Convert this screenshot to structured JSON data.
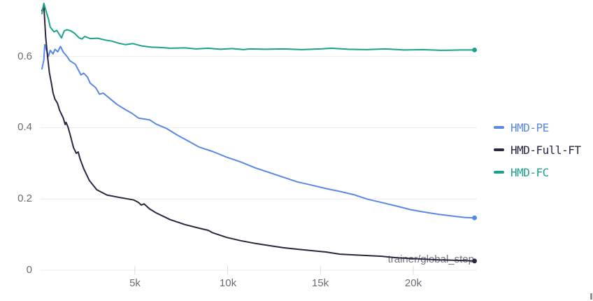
{
  "chart_data": {
    "type": "line",
    "title": "",
    "xlabel": "trainer/global_step",
    "ylabel": "",
    "xlim": [
      0,
      23300
    ],
    "ylim": [
      0,
      0.76
    ],
    "grid": "horizontal-only",
    "legend_position": "right",
    "background_color": "#ffffff",
    "gridline_color": "#ebebf0",
    "tick_mark_color": "#dcdce2",
    "tick_label_color": "#6b6b76",
    "axis_label_color": "#73737d",
    "xticks": [
      {
        "value": 5000,
        "label": "5k"
      },
      {
        "value": 10000,
        "label": "10k"
      },
      {
        "value": 15000,
        "label": "15k"
      },
      {
        "value": 20000,
        "label": "20k"
      }
    ],
    "yticks": [
      {
        "value": 0,
        "label": "0"
      },
      {
        "value": 0.2,
        "label": "0.2"
      },
      {
        "value": 0.4,
        "label": "0.4"
      },
      {
        "value": 0.6,
        "label": "0.6"
      }
    ],
    "series": [
      {
        "name": "HMD-PE",
        "color": "#5b87e5",
        "points": [
          [
            0,
            0.565
          ],
          [
            100,
            0.59
          ],
          [
            150,
            0.633
          ],
          [
            350,
            0.6
          ],
          [
            450,
            0.617
          ],
          [
            600,
            0.607
          ],
          [
            700,
            0.62
          ],
          [
            850,
            0.613
          ],
          [
            1000,
            0.628
          ],
          [
            1150,
            0.612
          ],
          [
            1350,
            0.6
          ],
          [
            1500,
            0.588
          ],
          [
            1800,
            0.578
          ],
          [
            2100,
            0.548
          ],
          [
            2250,
            0.553
          ],
          [
            2450,
            0.542
          ],
          [
            2600,
            0.525
          ],
          [
            2900,
            0.512
          ],
          [
            3100,
            0.494
          ],
          [
            3300,
            0.497
          ],
          [
            3700,
            0.48
          ],
          [
            4050,
            0.465
          ],
          [
            4450,
            0.452
          ],
          [
            4850,
            0.44
          ],
          [
            5200,
            0.427
          ],
          [
            5800,
            0.422
          ],
          [
            6150,
            0.41
          ],
          [
            6700,
            0.398
          ],
          [
            7300,
            0.379
          ],
          [
            7900,
            0.362
          ],
          [
            8450,
            0.346
          ],
          [
            9200,
            0.333
          ],
          [
            9950,
            0.317
          ],
          [
            10700,
            0.304
          ],
          [
            11500,
            0.287
          ],
          [
            12250,
            0.274
          ],
          [
            13000,
            0.261
          ],
          [
            13750,
            0.248
          ],
          [
            14500,
            0.239
          ],
          [
            15300,
            0.229
          ],
          [
            16050,
            0.221
          ],
          [
            16800,
            0.212
          ],
          [
            17550,
            0.199
          ],
          [
            18300,
            0.19
          ],
          [
            19100,
            0.18
          ],
          [
            19850,
            0.17
          ],
          [
            20600,
            0.163
          ],
          [
            21350,
            0.157
          ],
          [
            22100,
            0.152
          ],
          [
            22800,
            0.148
          ],
          [
            23300,
            0.147
          ]
        ],
        "end_value": 0.147
      },
      {
        "name": "HMD-Full-FT",
        "color": "#2b2540",
        "points": [
          [
            0,
            0.728
          ],
          [
            100,
            0.742
          ],
          [
            200,
            0.655
          ],
          [
            300,
            0.6
          ],
          [
            400,
            0.555
          ],
          [
            500,
            0.527
          ],
          [
            600,
            0.497
          ],
          [
            700,
            0.48
          ],
          [
            800,
            0.472
          ],
          [
            850,
            0.466
          ],
          [
            950,
            0.449
          ],
          [
            1150,
            0.427
          ],
          [
            1250,
            0.409
          ],
          [
            1300,
            0.415
          ],
          [
            1400,
            0.402
          ],
          [
            1500,
            0.384
          ],
          [
            1700,
            0.344
          ],
          [
            1850,
            0.328
          ],
          [
            1950,
            0.332
          ],
          [
            2050,
            0.313
          ],
          [
            2250,
            0.285
          ],
          [
            2550,
            0.252
          ],
          [
            2950,
            0.226
          ],
          [
            3500,
            0.211
          ],
          [
            4200,
            0.204
          ],
          [
            4950,
            0.197
          ],
          [
            5200,
            0.19
          ],
          [
            5350,
            0.183
          ],
          [
            5500,
            0.186
          ],
          [
            5800,
            0.172
          ],
          [
            6150,
            0.161
          ],
          [
            6900,
            0.142
          ],
          [
            7700,
            0.128
          ],
          [
            8450,
            0.118
          ],
          [
            8950,
            0.112
          ],
          [
            9200,
            0.105
          ],
          [
            9950,
            0.092
          ],
          [
            10700,
            0.083
          ],
          [
            11500,
            0.075
          ],
          [
            12250,
            0.069
          ],
          [
            13000,
            0.063
          ],
          [
            13750,
            0.059
          ],
          [
            14500,
            0.055
          ],
          [
            15300,
            0.051
          ],
          [
            16050,
            0.045
          ],
          [
            16800,
            0.043
          ],
          [
            17550,
            0.041
          ],
          [
            18300,
            0.039
          ],
          [
            19100,
            0.035
          ],
          [
            19850,
            0.033
          ],
          [
            20600,
            0.031
          ],
          [
            21350,
            0.029
          ],
          [
            22100,
            0.028
          ],
          [
            22800,
            0.027
          ],
          [
            23300,
            0.026
          ]
        ],
        "end_value": 0.026
      },
      {
        "name": "HMD-FC",
        "color": "#1ea189",
        "points": [
          [
            0,
            0.72
          ],
          [
            100,
            0.749
          ],
          [
            200,
            0.731
          ],
          [
            350,
            0.705
          ],
          [
            450,
            0.682
          ],
          [
            650,
            0.669
          ],
          [
            800,
            0.673
          ],
          [
            1050,
            0.652
          ],
          [
            1200,
            0.672
          ],
          [
            1350,
            0.675
          ],
          [
            1550,
            0.672
          ],
          [
            1750,
            0.665
          ],
          [
            2000,
            0.652
          ],
          [
            2150,
            0.649
          ],
          [
            2300,
            0.656
          ],
          [
            2600,
            0.65
          ],
          [
            3000,
            0.651
          ],
          [
            3400,
            0.646
          ],
          [
            3750,
            0.643
          ],
          [
            4150,
            0.637
          ],
          [
            4500,
            0.633
          ],
          [
            4900,
            0.636
          ],
          [
            5400,
            0.629
          ],
          [
            5900,
            0.626
          ],
          [
            6400,
            0.625
          ],
          [
            6900,
            0.623
          ],
          [
            7700,
            0.624
          ],
          [
            8300,
            0.621
          ],
          [
            8950,
            0.623
          ],
          [
            9600,
            0.62
          ],
          [
            10250,
            0.622
          ],
          [
            10850,
            0.619
          ],
          [
            11200,
            0.621
          ],
          [
            12000,
            0.62
          ],
          [
            13000,
            0.621
          ],
          [
            14000,
            0.619
          ],
          [
            15000,
            0.621
          ],
          [
            15600,
            0.623
          ],
          [
            16500,
            0.62
          ],
          [
            17500,
            0.619
          ],
          [
            18500,
            0.621
          ],
          [
            19500,
            0.618
          ],
          [
            20500,
            0.619
          ],
          [
            21500,
            0.617
          ],
          [
            22500,
            0.618
          ],
          [
            23300,
            0.618
          ]
        ],
        "end_value": 0.618
      }
    ]
  }
}
